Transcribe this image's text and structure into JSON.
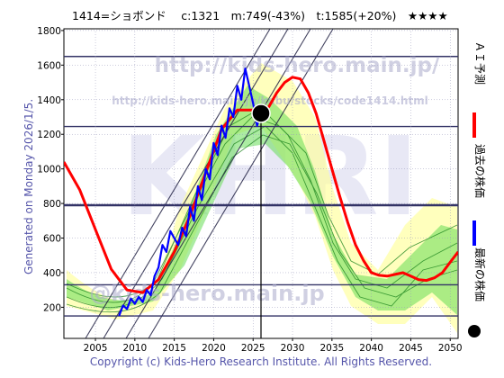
{
  "header": {
    "text": "1414=ショボンド　 c:1321　m:749(-43%)　t:1585(+20%)　★★★★"
  },
  "side_left": {
    "text": "Generated on Monday 2026/1/5."
  },
  "watermarks": {
    "url_main": "http://kids-hero.main.jp/",
    "url_code": "http://kids-hero.main.jp/kabu/stocks/code1414.html",
    "logo": "KHRI",
    "email": "@kids-hero.main.jp"
  },
  "legend": {
    "items": [
      {
        "label": "ＡＩ予測",
        "color": "#ff0000",
        "marker": "line"
      },
      {
        "label": "過去の株価",
        "color": "#0000ff",
        "marker": "line"
      },
      {
        "label": "最新の株価",
        "color": "#000000",
        "marker": "dot"
      }
    ]
  },
  "footer": {
    "text": "Copyright (c) Kids-Hero Research Institute. All Rights Reserved."
  },
  "chart_data": {
    "type": "line",
    "xlim": [
      2001,
      2051
    ],
    "ylim": [
      20,
      1810
    ],
    "x_ticks": [
      2005,
      2010,
      2015,
      2020,
      2025,
      2030,
      2035,
      2040,
      2045,
      2050
    ],
    "y_ticks": [
      200,
      400,
      600,
      800,
      1000,
      1200,
      1400,
      1600,
      1800
    ],
    "grid": true,
    "reference_lines": [
      1650,
      1245,
      790,
      330,
      150
    ],
    "latest": {
      "x": 2026.0,
      "y": 1321
    },
    "series": [
      {
        "name": "ＡＩ予測",
        "color": "#ff0000",
        "x": [
          2001,
          2003,
          2005,
          2007,
          2009,
          2011,
          2013,
          2015,
          2017,
          2019,
          2021,
          2023,
          2025,
          2026,
          2027,
          2028,
          2029,
          2030,
          2031,
          2032,
          2033,
          2034,
          2035,
          2036,
          2037,
          2038,
          2039,
          2040,
          2041,
          2042,
          2043,
          2044,
          2045,
          2046,
          2047,
          2048,
          2049,
          2050,
          2051
        ],
        "y": [
          1040,
          880,
          650,
          420,
          300,
          285,
          360,
          520,
          730,
          980,
          1230,
          1340,
          1340,
          1320,
          1360,
          1440,
          1500,
          1530,
          1520,
          1440,
          1320,
          1160,
          1000,
          840,
          690,
          560,
          470,
          400,
          385,
          380,
          390,
          400,
          380,
          360,
          355,
          370,
          400,
          460,
          520
        ]
      },
      {
        "name": "過去の株価",
        "color": "#0000ff",
        "x": [
          2008.0,
          2008.5,
          2009.0,
          2009.5,
          2010.0,
          2010.5,
          2011.0,
          2011.5,
          2012.0,
          2012.5,
          2013.0,
          2013.5,
          2014.0,
          2014.5,
          2015.0,
          2015.5,
          2016.0,
          2016.5,
          2017.0,
          2017.5,
          2018.0,
          2018.5,
          2019.0,
          2019.5,
          2020.0,
          2020.5,
          2021.0,
          2021.5,
          2022.0,
          2022.5,
          2023.0,
          2023.5,
          2024.0,
          2024.5,
          2025.0,
          2025.5,
          2026.0
        ],
        "y": [
          150,
          210,
          190,
          250,
          220,
          260,
          230,
          300,
          270,
          380,
          430,
          560,
          520,
          640,
          600,
          560,
          660,
          610,
          780,
          700,
          900,
          820,
          1000,
          940,
          1150,
          1080,
          1250,
          1180,
          1350,
          1300,
          1480,
          1400,
          1580,
          1480,
          1380,
          1250,
          1321
        ]
      }
    ]
  }
}
